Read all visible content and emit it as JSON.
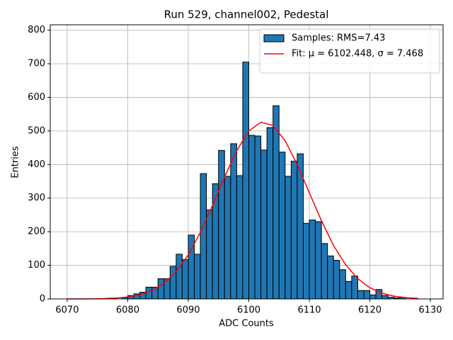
{
  "chart_data": {
    "type": "histogram",
    "title": "Run 529, channel002, Pedestal",
    "x_label": "ADC Counts",
    "y_label": "Entries",
    "xlim": [
      6067.2,
      6132.1
    ],
    "ylim": [
      0,
      816
    ],
    "xticks": [
      6070,
      6080,
      6090,
      6100,
      6110,
      6120,
      6130
    ],
    "yticks": [
      0,
      100,
      200,
      300,
      400,
      500,
      600,
      700,
      800
    ],
    "grid": true,
    "legend": "upper right",
    "series": [
      {
        "name": "Samples: RMS=7.43",
        "type": "histogram",
        "color": "#1f77b4",
        "edgecolor": "#000000",
        "bins": [
          6079,
          6080,
          6081,
          6082,
          6083,
          6084,
          6085,
          6086,
          6087,
          6088,
          6089,
          6090,
          6091,
          6092,
          6093,
          6094,
          6095,
          6096,
          6097,
          6098,
          6099,
          6100,
          6101,
          6102,
          6103,
          6104,
          6105,
          6106,
          6107,
          6108,
          6109,
          6110,
          6111,
          6112,
          6113,
          6114,
          6115,
          6116,
          6117,
          6118,
          6119,
          6120,
          6121,
          6122,
          6123,
          6124,
          6125,
          6126
        ],
        "values": [
          4,
          10,
          15,
          20,
          35,
          35,
          60,
          60,
          97,
          133,
          117,
          190,
          133,
          373,
          265,
          343,
          442,
          365,
          462,
          367,
          705,
          487,
          485,
          443,
          510,
          575,
          437,
          365,
          410,
          432,
          225,
          235,
          230,
          165,
          128,
          115,
          87,
          52,
          68,
          25,
          25,
          12,
          28,
          10,
          5,
          3,
          4
        ]
      },
      {
        "name": "Fit: μ = 6102.448, σ = 7.468",
        "type": "line",
        "color": "#ff0000",
        "x": [
          6070,
          6072,
          6074,
          6076,
          6078,
          6080,
          6082,
          6084,
          6086,
          6088,
          6090,
          6092,
          6094,
          6096,
          6098,
          6100,
          6102,
          6104,
          6106,
          6108,
          6110,
          6112,
          6114,
          6116,
          6118,
          6120,
          6122,
          6124,
          6126,
          6128
        ],
        "values": [
          0.04,
          0.13,
          0.37,
          1.0,
          2.5,
          5.8,
          12.4,
          24.9,
          46.6,
          81.1,
          131.4,
          198,
          278,
          363,
          441,
          500,
          526,
          516,
          471,
          400,
          316,
          233,
          159,
          101.5,
          60.2,
          33.3,
          17.1,
          8.2,
          3.6,
          1.5
        ]
      }
    ]
  }
}
